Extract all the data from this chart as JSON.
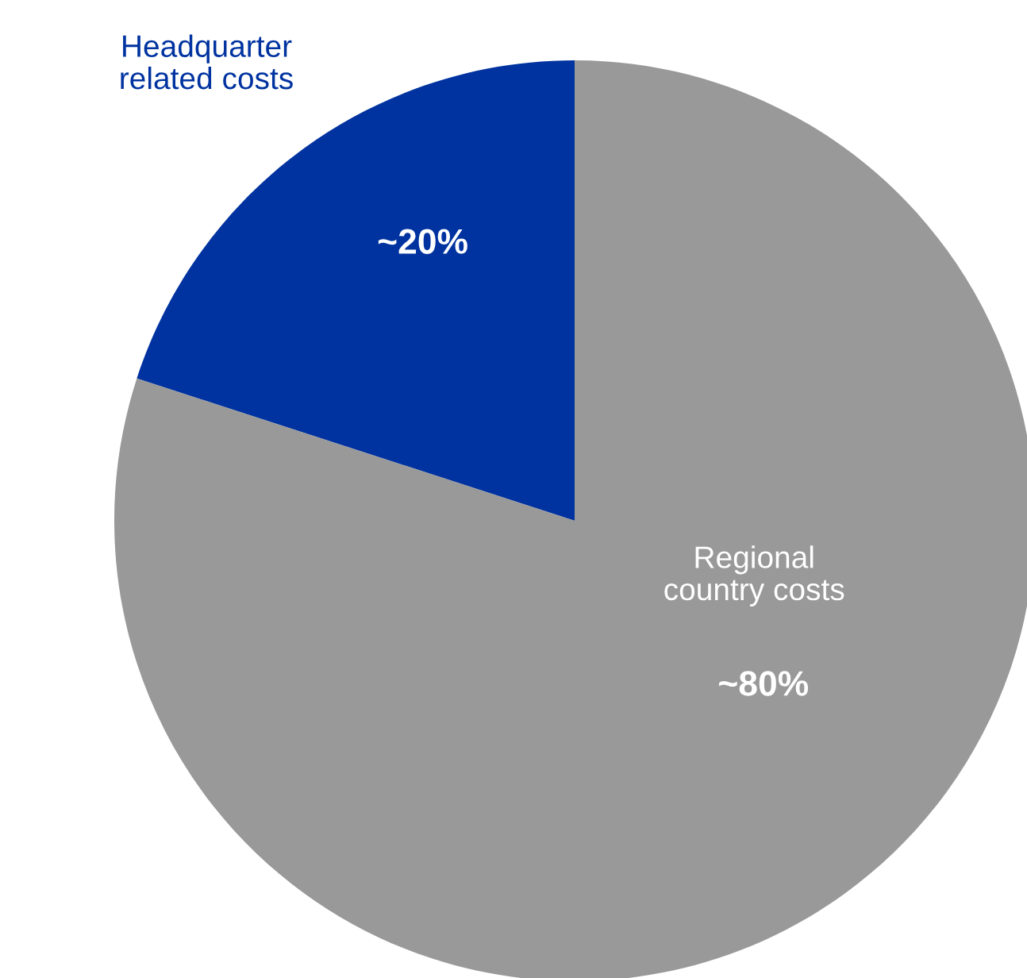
{
  "chart_data": {
    "type": "pie",
    "categories": [
      "Headquarter\nrelated costs",
      "Regional\ncountry costs"
    ],
    "values": [
      20,
      80
    ],
    "value_labels": [
      "~20%",
      "~80%"
    ],
    "colors": [
      "#0033a0",
      "#999999"
    ],
    "legend": false
  }
}
